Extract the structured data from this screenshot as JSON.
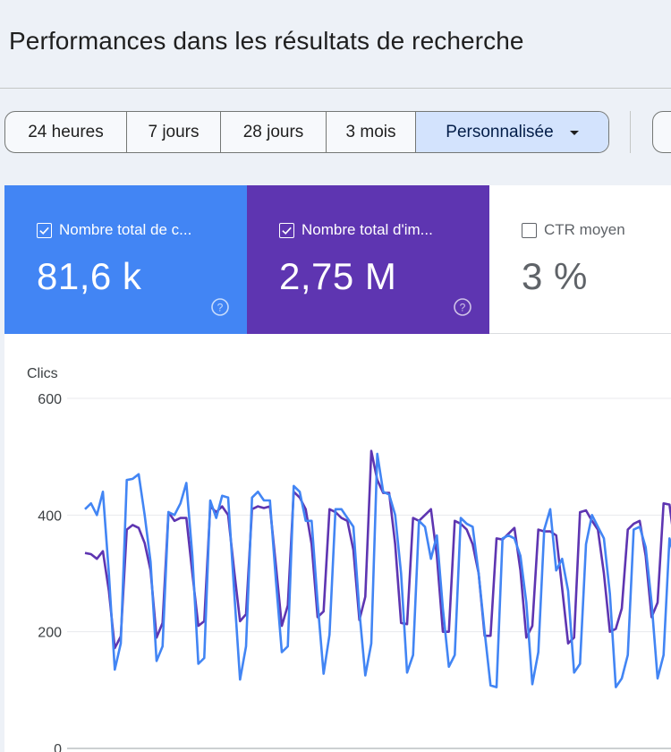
{
  "header": {
    "title": "Performances dans les résultats de recherche"
  },
  "date_range": {
    "options": [
      {
        "label": "24 heures",
        "selected": false
      },
      {
        "label": "7 jours",
        "selected": false
      },
      {
        "label": "28 jours",
        "selected": false
      },
      {
        "label": "3 mois",
        "selected": false
      },
      {
        "label": "Personnalisée",
        "selected": true,
        "dropdown": true
      }
    ]
  },
  "metrics": [
    {
      "label": "Nombre total de c...",
      "value": "81,6 k",
      "checked": true,
      "color": "#4285f4",
      "help_icon": "help-circle-icon"
    },
    {
      "label": "Nombre total d'im...",
      "value": "2,75 M",
      "checked": true,
      "color": "#5e35b1",
      "help_icon": "help-circle-icon"
    },
    {
      "label": "CTR moyen",
      "value": "3 %",
      "checked": false,
      "color": "#ffffff"
    }
  ],
  "chart_data": {
    "type": "line",
    "ylabel": "Clics",
    "ylim": [
      0,
      600
    ],
    "yticks": [
      "600",
      "400",
      "200",
      "0"
    ],
    "yticks_values": [
      600,
      400,
      200,
      0
    ],
    "grid": true,
    "series": [
      {
        "color": "#4285f4",
        "values": [
          410,
          420,
          400,
          440,
          300,
          135,
          180,
          460,
          462,
          470,
          400,
          320,
          150,
          175,
          405,
          400,
          420,
          455,
          330,
          145,
          155,
          425,
          395,
          433,
          430,
          270,
          118,
          175,
          430,
          440,
          425,
          425,
          290,
          165,
          175,
          450,
          440,
          390,
          390,
          250,
          128,
          195,
          410,
          410,
          395,
          380,
          235,
          125,
          180,
          505,
          440,
          435,
          400,
          300,
          130,
          160,
          390,
          380,
          325,
          365,
          240,
          140,
          160,
          395,
          385,
          380,
          300,
          200,
          108,
          105,
          360,
          365,
          360,
          330,
          250,
          110,
          165,
          375,
          410,
          305,
          325,
          270,
          130,
          145,
          350,
          400,
          380,
          360,
          265,
          105,
          120,
          160,
          375,
          380,
          345,
          250,
          120,
          160,
          360,
          320
        ]
      },
      {
        "color": "#5e35b1",
        "values": [
          335,
          333,
          325,
          338,
          270,
          172,
          192,
          375,
          383,
          378,
          352,
          305,
          190,
          215,
          405,
          390,
          395,
          395,
          300,
          210,
          218,
          415,
          405,
          415,
          400,
          305,
          218,
          230,
          410,
          415,
          412,
          415,
          315,
          210,
          245,
          440,
          430,
          410,
          350,
          225,
          235,
          410,
          405,
          395,
          390,
          340,
          220,
          260,
          510,
          460,
          438,
          438,
          350,
          215,
          213,
          395,
          390,
          400,
          410,
          330,
          200,
          200,
          390,
          385,
          375,
          350,
          300,
          193,
          193,
          360,
          358,
          368,
          378,
          305,
          190,
          210,
          375,
          372,
          372,
          365,
          275,
          180,
          190,
          405,
          408,
          390,
          375,
          300,
          200,
          205,
          240,
          375,
          385,
          390,
          330,
          225,
          250,
          420,
          418,
          340
        ]
      }
    ]
  }
}
